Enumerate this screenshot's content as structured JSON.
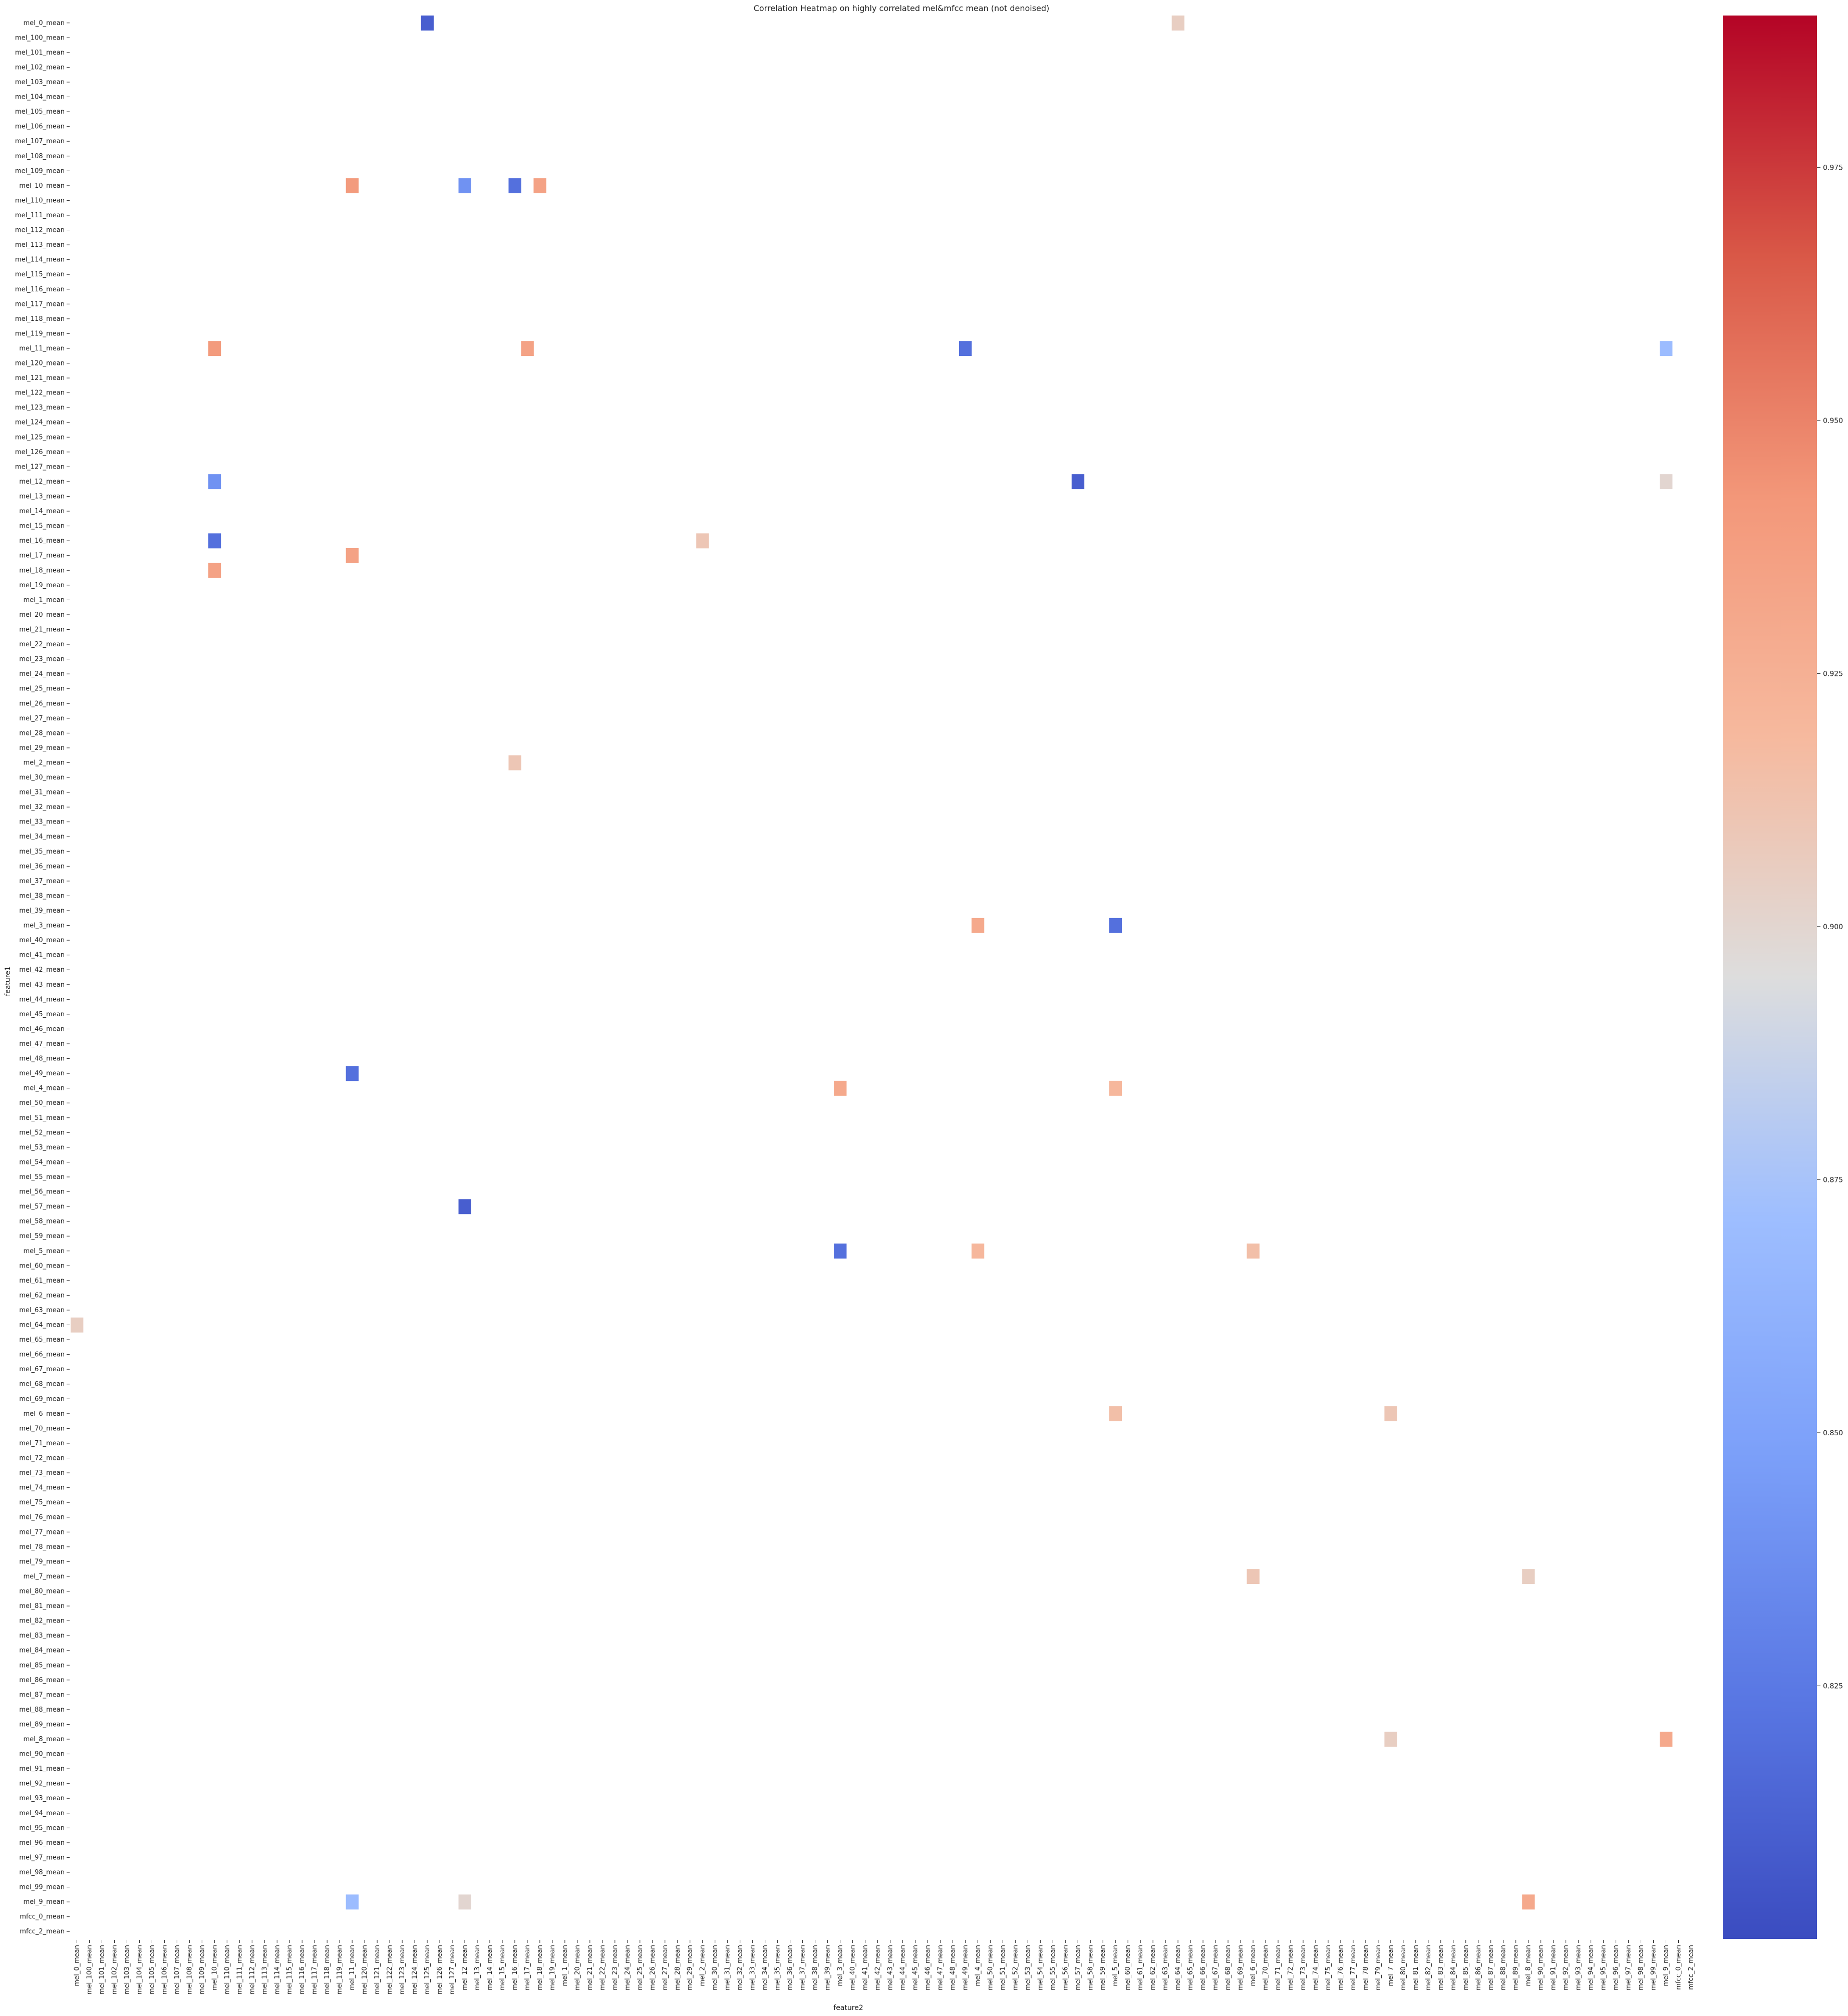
{
  "chart_data": {
    "type": "heatmap",
    "title": "Correlation Heatmap on highly correlated mel&mfcc mean (not denoised)",
    "xlabel": "feature2",
    "ylabel": "feature1",
    "labels": [
      "mel_0_mean",
      "mel_100_mean",
      "mel_101_mean",
      "mel_102_mean",
      "mel_103_mean",
      "mel_104_mean",
      "mel_105_mean",
      "mel_106_mean",
      "mel_107_mean",
      "mel_108_mean",
      "mel_109_mean",
      "mel_10_mean",
      "mel_110_mean",
      "mel_111_mean",
      "mel_112_mean",
      "mel_113_mean",
      "mel_114_mean",
      "mel_115_mean",
      "mel_116_mean",
      "mel_117_mean",
      "mel_118_mean",
      "mel_119_mean",
      "mel_11_mean",
      "mel_120_mean",
      "mel_121_mean",
      "mel_122_mean",
      "mel_123_mean",
      "mel_124_mean",
      "mel_125_mean",
      "mel_126_mean",
      "mel_127_mean",
      "mel_12_mean",
      "mel_13_mean",
      "mel_14_mean",
      "mel_15_mean",
      "mel_16_mean",
      "mel_17_mean",
      "mel_18_mean",
      "mel_19_mean",
      "mel_1_mean",
      "mel_20_mean",
      "mel_21_mean",
      "mel_22_mean",
      "mel_23_mean",
      "mel_24_mean",
      "mel_25_mean",
      "mel_26_mean",
      "mel_27_mean",
      "mel_28_mean",
      "mel_29_mean",
      "mel_2_mean",
      "mel_30_mean",
      "mel_31_mean",
      "mel_32_mean",
      "mel_33_mean",
      "mel_34_mean",
      "mel_35_mean",
      "mel_36_mean",
      "mel_37_mean",
      "mel_38_mean",
      "mel_39_mean",
      "mel_3_mean",
      "mel_40_mean",
      "mel_41_mean",
      "mel_42_mean",
      "mel_43_mean",
      "mel_44_mean",
      "mel_45_mean",
      "mel_46_mean",
      "mel_47_mean",
      "mel_48_mean",
      "mel_49_mean",
      "mel_4_mean",
      "mel_50_mean",
      "mel_51_mean",
      "mel_52_mean",
      "mel_53_mean",
      "mel_54_mean",
      "mel_55_mean",
      "mel_56_mean",
      "mel_57_mean",
      "mel_58_mean",
      "mel_59_mean",
      "mel_5_mean",
      "mel_60_mean",
      "mel_61_mean",
      "mel_62_mean",
      "mel_63_mean",
      "mel_64_mean",
      "mel_65_mean",
      "mel_66_mean",
      "mel_67_mean",
      "mel_68_mean",
      "mel_69_mean",
      "mel_6_mean",
      "mel_70_mean",
      "mel_71_mean",
      "mel_72_mean",
      "mel_73_mean",
      "mel_74_mean",
      "mel_75_mean",
      "mel_76_mean",
      "mel_77_mean",
      "mel_78_mean",
      "mel_79_mean",
      "mel_7_mean",
      "mel_80_mean",
      "mel_81_mean",
      "mel_82_mean",
      "mel_83_mean",
      "mel_84_mean",
      "mel_85_mean",
      "mel_86_mean",
      "mel_87_mean",
      "mel_88_mean",
      "mel_89_mean",
      "mel_8_mean",
      "mel_90_mean",
      "mel_91_mean",
      "mel_92_mean",
      "mel_93_mean",
      "mel_94_mean",
      "mel_95_mean",
      "mel_96_mean",
      "mel_97_mean",
      "mel_98_mean",
      "mel_99_mean",
      "mel_9_mean",
      "mfcc_0_mean",
      "mfcc_2_mean"
    ],
    "colorbar": {
      "cmap": "coolwarm",
      "range": [
        0.8,
        0.99
      ],
      "ticks": [
        0.825,
        0.85,
        0.875,
        0.9,
        0.925,
        0.95,
        0.975
      ]
    },
    "mask": "values below 0.8 and the diagonal are blank",
    "cells": [
      [
        0,
        28,
        0.81
      ],
      [
        0,
        88,
        0.905
      ],
      [
        88,
        0,
        0.905
      ],
      [
        11,
        37,
        0.935
      ],
      [
        37,
        11,
        0.935
      ],
      [
        11,
        22,
        0.94
      ],
      [
        22,
        11,
        0.94
      ],
      [
        11,
        31,
        0.84
      ],
      [
        31,
        11,
        0.84
      ],
      [
        11,
        35,
        0.82
      ],
      [
        35,
        11,
        0.82
      ],
      [
        22,
        71,
        0.82
      ],
      [
        71,
        22,
        0.82
      ],
      [
        22,
        36,
        0.935
      ],
      [
        36,
        22,
        0.935
      ],
      [
        31,
        80,
        0.81
      ],
      [
        80,
        31,
        0.81
      ],
      [
        50,
        35,
        0.91
      ],
      [
        35,
        50,
        0.91
      ],
      [
        61,
        72,
        0.93
      ],
      [
        72,
        61,
        0.93
      ],
      [
        61,
        83,
        0.82
      ],
      [
        83,
        61,
        0.82
      ],
      [
        72,
        83,
        0.92
      ],
      [
        83,
        72,
        0.92
      ],
      [
        83,
        94,
        0.915
      ],
      [
        94,
        83,
        0.915
      ],
      [
        94,
        105,
        0.91
      ],
      [
        105,
        94,
        0.91
      ],
      [
        105,
        116,
        0.905
      ],
      [
        116,
        105,
        0.905
      ],
      [
        116,
        127,
        0.93
      ],
      [
        127,
        116,
        0.93
      ],
      [
        127,
        22,
        0.87
      ],
      [
        22,
        127,
        0.87
      ],
      [
        127,
        31,
        0.9
      ],
      [
        31,
        127,
        0.9
      ]
    ]
  }
}
